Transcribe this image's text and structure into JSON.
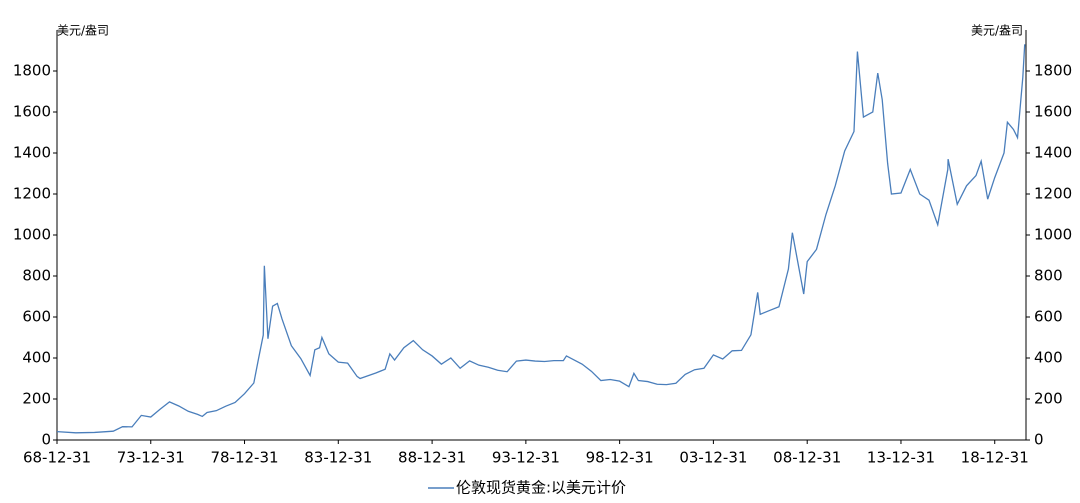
{
  "chart_data": {
    "type": "line",
    "y_label": "美元/盎司",
    "y2_label": "美元/盎司",
    "xlim": [
      "68-12-31",
      "20-08-31"
    ],
    "xticks": [
      "68-12-31",
      "73-12-31",
      "78-12-31",
      "83-12-31",
      "88-12-31",
      "93-12-31",
      "98-12-31",
      "03-12-31",
      "08-12-31",
      "13-12-31",
      "18-12-31"
    ],
    "ylim": [
      0,
      2000
    ],
    "yticks": [
      0,
      200,
      400,
      600,
      800,
      1000,
      1200,
      1400,
      1600,
      1800
    ],
    "y2lim": [
      0,
      2000
    ],
    "y2ticks": [
      0,
      200,
      400,
      600,
      800,
      1000,
      1200,
      1400,
      1600,
      1800
    ],
    "x": [
      "68-12-31",
      "69-12-31",
      "70-12-31",
      "71-12-31",
      "72-06-30",
      "72-12-31",
      "73-06-30",
      "73-12-31",
      "74-06-30",
      "74-12-31",
      "75-06-30",
      "75-12-31",
      "76-06-30",
      "76-09-30",
      "76-12-31",
      "77-06-30",
      "77-12-31",
      "78-06-30",
      "78-12-31",
      "79-06-30",
      "79-09-30",
      "79-12-31",
      "80-01-21",
      "80-03-31",
      "80-06-30",
      "80-09-30",
      "80-12-31",
      "81-06-30",
      "81-12-31",
      "82-06-30",
      "82-09-30",
      "82-12-31",
      "83-02-15",
      "83-06-30",
      "83-12-31",
      "84-06-30",
      "84-12-31",
      "85-02-28",
      "85-12-31",
      "86-06-30",
      "86-09-30",
      "86-12-31",
      "87-06-30",
      "87-12-31",
      "88-06-30",
      "88-12-31",
      "89-06-30",
      "89-12-31",
      "90-06-30",
      "90-12-31",
      "91-06-30",
      "91-12-31",
      "92-06-30",
      "92-12-31",
      "93-06-30",
      "93-12-31",
      "94-06-30",
      "94-12-31",
      "95-06-30",
      "95-12-31",
      "96-02-29",
      "96-12-31",
      "97-06-30",
      "97-12-31",
      "98-06-30",
      "98-12-31",
      "99-06-30",
      "99-10-05",
      "99-12-31",
      "00-06-30",
      "00-12-31",
      "01-06-30",
      "01-12-31",
      "02-06-30",
      "02-12-31",
      "03-06-30",
      "03-12-31",
      "04-06-30",
      "04-12-31",
      "05-06-30",
      "05-12-31",
      "06-05-12",
      "06-06-30",
      "06-12-31",
      "07-06-30",
      "07-12-31",
      "08-03-17",
      "08-10-24",
      "08-12-31",
      "09-06-30",
      "09-12-31",
      "10-06-30",
      "10-12-31",
      "11-06-30",
      "11-09-05",
      "11-12-31",
      "12-06-30",
      "12-10-05",
      "12-12-31",
      "13-04-15",
      "13-06-28",
      "13-12-31",
      "14-06-30",
      "14-12-31",
      "15-06-30",
      "15-12-17",
      "16-06-30",
      "16-07-06",
      "16-12-31",
      "17-06-30",
      "17-12-31",
      "18-04-11",
      "18-08-16",
      "18-12-31",
      "19-06-30",
      "19-09-04",
      "19-12-31",
      "20-03-19",
      "20-06-30",
      "20-08-06"
    ],
    "series": [
      {
        "name": "伦敦现货黄金:以美元计价",
        "color": "#4a7ebb",
        "values": [
          41,
          35,
          37,
          43,
          65,
          64,
          120,
          112,
          150,
          186,
          166,
          140,
          125,
          115,
          134,
          143,
          165,
          183,
          226,
          278,
          397,
          512,
          850,
          494,
          653,
          666,
          590,
          460,
          397,
          315,
          440,
          450,
          500,
          420,
          380,
          375,
          310,
          300,
          327,
          345,
          420,
          390,
          450,
          485,
          440,
          410,
          370,
          400,
          350,
          386,
          365,
          355,
          340,
          333,
          385,
          390,
          385,
          383,
          387,
          387,
          410,
          370,
          335,
          290,
          295,
          287,
          260,
          325,
          290,
          285,
          272,
          270,
          277,
          320,
          343,
          350,
          415,
          395,
          435,
          437,
          513,
          720,
          613,
          632,
          650,
          834,
          1011,
          712,
          870,
          930,
          1100,
          1240,
          1410,
          1505,
          1895,
          1575,
          1600,
          1790,
          1660,
          1350,
          1200,
          1205,
          1320,
          1200,
          1170,
          1050,
          1320,
          1370,
          1150,
          1240,
          1290,
          1360,
          1175,
          1280,
          1400,
          1550,
          1515,
          1475,
          1770,
          1930
        ]
      }
    ]
  }
}
